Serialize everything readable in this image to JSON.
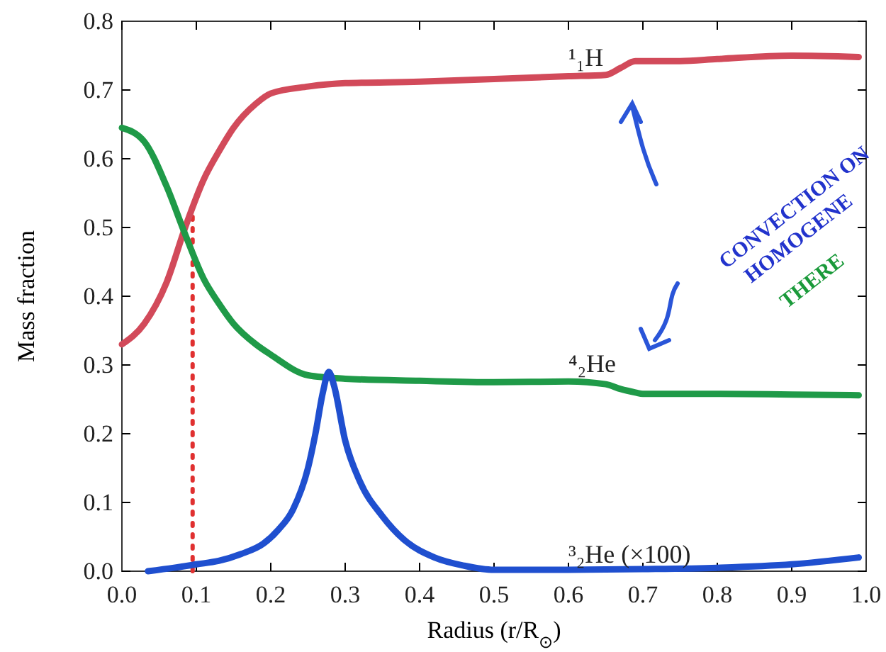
{
  "chart_data": {
    "type": "line",
    "xlabel": "Radius (r/R$_{⊙}$)",
    "ylabel": "Mass fraction",
    "xlim": [
      0,
      1
    ],
    "ylim": [
      0,
      0.8
    ],
    "xticks": [
      {
        "value": 0,
        "label": "0.0"
      },
      {
        "value": 0.1,
        "label": "0.1"
      },
      {
        "value": 0.2,
        "label": "0.2"
      },
      {
        "value": 0.3,
        "label": "0.3"
      },
      {
        "value": 0.4,
        "label": "0.4"
      },
      {
        "value": 0.5,
        "label": "0.5"
      },
      {
        "value": 0.6,
        "label": "0.6"
      },
      {
        "value": 0.7,
        "label": "0.7"
      },
      {
        "value": 0.8,
        "label": "0.8"
      },
      {
        "value": 0.9,
        "label": "0.9"
      },
      {
        "value": 1,
        "label": "1.0"
      }
    ],
    "yticks": [
      {
        "value": 0,
        "label": "0.0"
      },
      {
        "value": 0.1,
        "label": "0.1"
      },
      {
        "value": 0.2,
        "label": "0.2"
      },
      {
        "value": 0.3,
        "label": "0.3"
      },
      {
        "value": 0.4,
        "label": "0.4"
      },
      {
        "value": 0.5,
        "label": "0.5"
      },
      {
        "value": 0.6,
        "label": "0.6"
      },
      {
        "value": 0.7,
        "label": "0.7"
      },
      {
        "value": 0.8,
        "label": "0.8"
      }
    ],
    "grid": false,
    "line_style": "solid",
    "marker": "none",
    "series": [
      {
        "name": "¹₁H",
        "color": "#d24a5a",
        "x": [
          0,
          0.03,
          0.06,
          0.085,
          0.11,
          0.13,
          0.15,
          0.18,
          0.2,
          0.25,
          0.3,
          0.4,
          0.5,
          0.6,
          0.65,
          0.67,
          0.69,
          0.75,
          0.8,
          0.9,
          0.99
        ],
        "values": [
          0.33,
          0.36,
          0.42,
          0.5,
          0.57,
          0.61,
          0.645,
          0.68,
          0.695,
          0.705,
          0.71,
          0.712,
          0.716,
          0.72,
          0.722,
          0.732,
          0.742,
          0.742,
          0.745,
          0.75,
          0.748
        ]
      },
      {
        "name": "⁴₂He",
        "color": "#1f9a48",
        "x": [
          0,
          0.03,
          0.06,
          0.085,
          0.11,
          0.13,
          0.15,
          0.18,
          0.2,
          0.25,
          0.3,
          0.4,
          0.5,
          0.6,
          0.65,
          0.67,
          0.69,
          0.7,
          0.75,
          0.8,
          0.9,
          0.99
        ],
        "values": [
          0.645,
          0.625,
          0.56,
          0.49,
          0.425,
          0.39,
          0.36,
          0.33,
          0.315,
          0.285,
          0.28,
          0.277,
          0.275,
          0.276,
          0.272,
          0.265,
          0.26,
          0.258,
          0.258,
          0.258,
          0.257,
          0.256
        ]
      },
      {
        "name": "³₂He (×100)",
        "color": "#1f4fcf",
        "x": [
          0.035,
          0.07,
          0.1,
          0.13,
          0.16,
          0.19,
          0.21,
          0.23,
          0.25,
          0.26,
          0.27,
          0.278,
          0.285,
          0.3,
          0.32,
          0.35,
          0.38,
          0.42,
          0.46,
          0.5,
          0.6,
          0.7,
          0.8,
          0.9,
          0.99
        ],
        "values": [
          0,
          0.005,
          0.01,
          0.015,
          0.025,
          0.04,
          0.06,
          0.09,
          0.15,
          0.2,
          0.26,
          0.29,
          0.27,
          0.19,
          0.13,
          0.08,
          0.045,
          0.02,
          0.008,
          0.002,
          0.002,
          0.003,
          0.005,
          0.01,
          0.02
        ]
      }
    ],
    "ref_lines": [
      {
        "axis": "x",
        "value": 0.095,
        "color": "#e03030",
        "line_style": "dotted"
      }
    ],
    "annotations": [
      "CONVECTION ON",
      "HOMOGENE",
      "THERE"
    ]
  }
}
